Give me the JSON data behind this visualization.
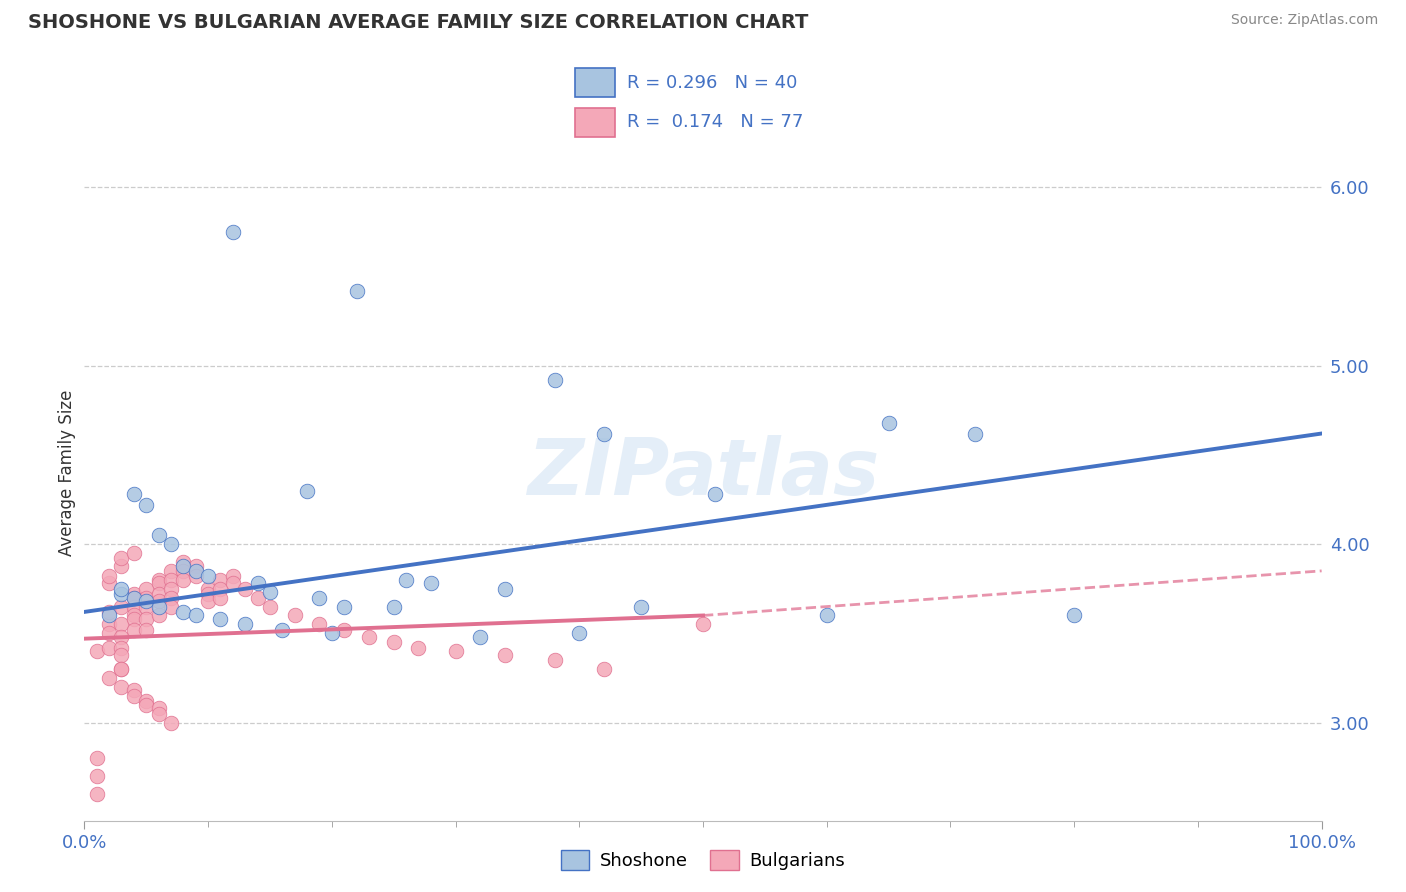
{
  "title": "SHOSHONE VS BULGARIAN AVERAGE FAMILY SIZE CORRELATION CHART",
  "source": "Source: ZipAtlas.com",
  "ylabel": "Average Family Size",
  "watermark": "ZIPatlas",
  "legend_blue_r": "0.296",
  "legend_blue_n": "40",
  "legend_pink_r": "0.174",
  "legend_pink_n": "77",
  "shoshone_color": "#a8c4e0",
  "bulgarian_color": "#f4a8b8",
  "trendline_blue": "#4472c4",
  "trendline_pink": "#e07090",
  "shoshone_x": [
    12,
    22,
    4,
    5,
    6,
    7,
    8,
    9,
    10,
    14,
    15,
    19,
    21,
    25,
    28,
    34,
    38,
    42,
    51,
    60,
    65,
    72,
    80,
    32,
    40,
    45,
    3,
    4,
    5,
    6,
    8,
    9,
    11,
    13,
    16,
    20,
    2,
    3,
    18,
    26
  ],
  "shoshone_y": [
    5.75,
    5.42,
    4.28,
    4.22,
    4.05,
    4.0,
    3.88,
    3.85,
    3.82,
    3.78,
    3.73,
    3.7,
    3.65,
    3.65,
    3.78,
    3.75,
    4.92,
    4.62,
    4.28,
    3.6,
    4.68,
    4.62,
    3.6,
    3.48,
    3.5,
    3.65,
    3.72,
    3.7,
    3.68,
    3.65,
    3.62,
    3.6,
    3.58,
    3.55,
    3.52,
    3.5,
    3.6,
    3.75,
    4.3,
    3.8
  ],
  "bulgarian_x": [
    1,
    1,
    2,
    2,
    2,
    2,
    3,
    3,
    3,
    3,
    3,
    3,
    4,
    4,
    4,
    4,
    4,
    4,
    5,
    5,
    5,
    5,
    5,
    6,
    6,
    6,
    6,
    6,
    7,
    7,
    7,
    7,
    7,
    8,
    8,
    8,
    9,
    9,
    10,
    10,
    10,
    11,
    11,
    11,
    12,
    12,
    13,
    14,
    15,
    17,
    19,
    21,
    23,
    25,
    27,
    30,
    34,
    38,
    42,
    50,
    2,
    3,
    3,
    4,
    4,
    5,
    5,
    6,
    6,
    7,
    1,
    1,
    2,
    2,
    3,
    3,
    4
  ],
  "bulgarian_y": [
    2.6,
    3.4,
    3.55,
    3.62,
    3.5,
    3.42,
    3.65,
    3.55,
    3.48,
    3.42,
    3.38,
    3.3,
    3.72,
    3.7,
    3.65,
    3.6,
    3.58,
    3.52,
    3.75,
    3.7,
    3.65,
    3.58,
    3.52,
    3.8,
    3.78,
    3.72,
    3.68,
    3.6,
    3.85,
    3.8,
    3.75,
    3.7,
    3.65,
    3.9,
    3.85,
    3.8,
    3.88,
    3.82,
    3.75,
    3.72,
    3.68,
    3.8,
    3.75,
    3.7,
    3.82,
    3.78,
    3.75,
    3.7,
    3.65,
    3.6,
    3.55,
    3.52,
    3.48,
    3.45,
    3.42,
    3.4,
    3.38,
    3.35,
    3.3,
    3.55,
    3.25,
    3.3,
    3.2,
    3.18,
    3.15,
    3.12,
    3.1,
    3.08,
    3.05,
    3.0,
    2.8,
    2.7,
    3.78,
    3.82,
    3.88,
    3.92,
    3.95
  ],
  "xlim": [
    0,
    100
  ],
  "ylim": [
    2.45,
    6.35
  ],
  "yticks": [
    3.0,
    4.0,
    5.0,
    6.0
  ],
  "shoshone_trendline_x0": 0,
  "shoshone_trendline_y0": 3.62,
  "shoshone_trendline_x1": 100,
  "shoshone_trendline_y1": 4.62,
  "bulgarian_trendline_x0": 0,
  "bulgarian_trendline_y0": 3.47,
  "bulgarian_trendline_x1": 50,
  "bulgarian_trendline_y1": 3.6,
  "bulgarian_trendline_dash_x1": 100,
  "bulgarian_trendline_dash_y1": 3.85
}
